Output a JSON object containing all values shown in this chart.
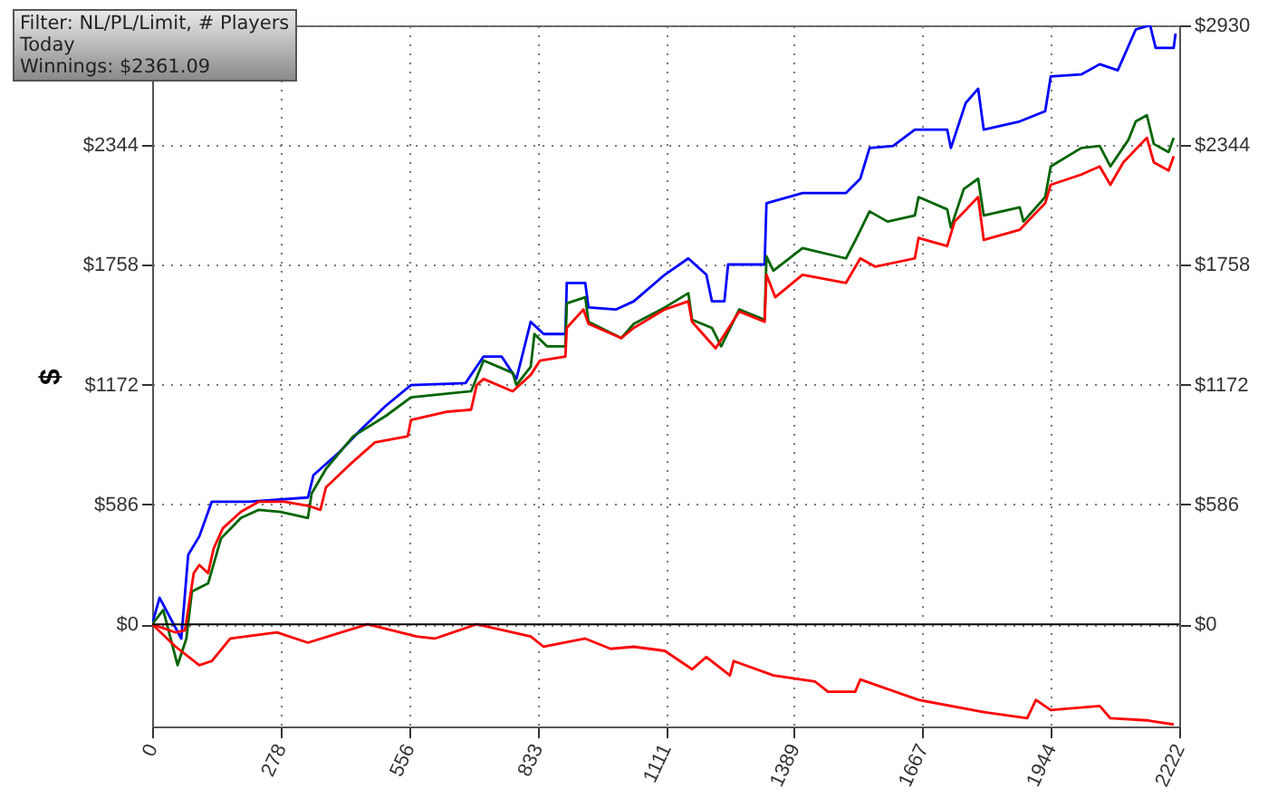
{
  "chart_data": {
    "type": "line",
    "ylabel": "$",
    "annotations": [
      "Filter: NL/PL/Limit, # Players",
      "Today",
      "Winnings: $2361.09"
    ],
    "xlim": [
      0,
      2222
    ],
    "xticks": [
      0,
      278,
      556,
      833,
      1111,
      1389,
      1667,
      1944,
      2222
    ],
    "ylim": [
      -500,
      2930
    ],
    "yticks": [
      {
        "value": 0,
        "label": "$0"
      },
      {
        "value": 586,
        "label": "$586"
      },
      {
        "value": 1172,
        "label": "$1172"
      },
      {
        "value": 1758,
        "label": "$1758"
      },
      {
        "value": 2344,
        "label": "$2344"
      },
      {
        "value": 2930,
        "label": null
      }
    ],
    "y2lim": [
      -500,
      2930
    ],
    "y2ticks": [
      {
        "value": 0,
        "label": "$0"
      },
      {
        "value": 586,
        "label": "$586"
      },
      {
        "value": 1172,
        "label": "$1172"
      },
      {
        "value": 1758,
        "label": "$1758"
      },
      {
        "value": 2344,
        "label": "$2344"
      },
      {
        "value": 2930,
        "label": "$2930"
      }
    ],
    "grid": true,
    "ref_lines": [
      {
        "axis": "y",
        "value": 0,
        "color": "#000000"
      }
    ],
    "series": [
      {
        "color": "#0000ff",
        "x": [
          0,
          16,
          63,
          78,
          102,
          129,
          208,
          337,
          349,
          404,
          455,
          506,
          560,
          678,
          717,
          756,
          788,
          819,
          847,
          894,
          897,
          937,
          944,
          1003,
          1042,
          1109,
          1160,
          1199,
          1211,
          1238,
          1246,
          1325,
          1329,
          1407,
          1501,
          1532,
          1552,
          1603,
          1650,
          1720,
          1728,
          1760,
          1787,
          1799,
          1877,
          1932,
          1944,
          2010,
          2050,
          2089,
          2128,
          2159,
          2171,
          2210,
          2214
        ],
        "values": [
          0,
          130,
          -70,
          340,
          430,
          600,
          600,
          620,
          730,
          840,
          960,
          1070,
          1170,
          1180,
          1310,
          1310,
          1200,
          1480,
          1420,
          1420,
          1670,
          1670,
          1550,
          1540,
          1580,
          1710,
          1790,
          1710,
          1580,
          1580,
          1760,
          1760,
          2060,
          2110,
          2110,
          2180,
          2330,
          2340,
          2420,
          2420,
          2330,
          2550,
          2620,
          2420,
          2460,
          2510,
          2680,
          2690,
          2740,
          2710,
          2910,
          2930,
          2820,
          2820,
          2890
        ]
      },
      {
        "color": "#006400",
        "x": [
          0,
          24,
          55,
          74,
          86,
          121,
          149,
          192,
          231,
          278,
          337,
          345,
          376,
          435,
          506,
          560,
          690,
          717,
          780,
          788,
          819,
          827,
          854,
          894,
          897,
          937,
          944,
          1015,
          1042,
          1109,
          1160,
          1168,
          1211,
          1231,
          1270,
          1325,
          1329,
          1344,
          1407,
          1501,
          1524,
          1552,
          1591,
          1650,
          1658,
          1720,
          1728,
          1756,
          1787,
          1799,
          1877,
          1885,
          1932,
          1944,
          2010,
          2050,
          2073,
          2112,
          2128,
          2152,
          2167,
          2199,
          2210
        ],
        "values": [
          0,
          70,
          -200,
          -70,
          160,
          200,
          420,
          520,
          560,
          550,
          520,
          640,
          760,
          920,
          1020,
          1110,
          1140,
          1290,
          1230,
          1170,
          1260,
          1420,
          1360,
          1360,
          1570,
          1600,
          1480,
          1400,
          1470,
          1550,
          1620,
          1490,
          1450,
          1360,
          1540,
          1490,
          1800,
          1730,
          1840,
          1790,
          1890,
          2020,
          1970,
          2000,
          2090,
          2030,
          1940,
          2130,
          2180,
          2000,
          2040,
          1970,
          2090,
          2240,
          2330,
          2340,
          2240,
          2370,
          2460,
          2490,
          2350,
          2310,
          2380
        ]
      },
      {
        "color": "#ff0000",
        "x": [
          0,
          51,
          71,
          90,
          102,
          121,
          133,
          153,
          192,
          231,
          286,
          337,
          364,
          376,
          427,
          482,
          553,
          560,
          639,
          690,
          702,
          717,
          780,
          819,
          839,
          894,
          897,
          933,
          944,
          1015,
          1042,
          1109,
          1160,
          1168,
          1219,
          1270,
          1325,
          1329,
          1348,
          1407,
          1501,
          1532,
          1564,
          1650,
          1658,
          1720,
          1736,
          1787,
          1799,
          1877,
          1932,
          1944,
          2010,
          2050,
          2073,
          2101,
          2152,
          2167,
          2199,
          2210
        ],
        "values": [
          0,
          -40,
          -30,
          250,
          290,
          250,
          370,
          470,
          550,
          600,
          600,
          580,
          560,
          670,
          780,
          890,
          920,
          1000,
          1040,
          1050,
          1170,
          1200,
          1140,
          1220,
          1290,
          1310,
          1450,
          1540,
          1470,
          1400,
          1450,
          1540,
          1580,
          1480,
          1350,
          1530,
          1480,
          1710,
          1600,
          1710,
          1670,
          1790,
          1750,
          1790,
          1890,
          1850,
          1970,
          2090,
          1880,
          1930,
          2060,
          2150,
          2200,
          2240,
          2150,
          2260,
          2380,
          2260,
          2220,
          2290
        ]
      },
      {
        "color": "#ff0000",
        "x": [
          0,
          51,
          102,
          129,
          169,
          270,
          337,
          466,
          572,
          611,
          702,
          819,
          847,
          937,
          992,
          1042,
          1109,
          1168,
          1199,
          1250,
          1258,
          1344,
          1434,
          1462,
          1521,
          1532,
          1658,
          1799,
          1893,
          1912,
          1944,
          2050,
          2073,
          2152,
          2210
        ],
        "values": [
          0,
          -110,
          -200,
          -180,
          -70,
          -40,
          -90,
          0,
          -60,
          -70,
          0,
          -60,
          -110,
          -70,
          -120,
          -110,
          -130,
          -220,
          -160,
          -250,
          -180,
          -250,
          -280,
          -330,
          -330,
          -270,
          -370,
          -430,
          -460,
          -370,
          -420,
          -400,
          -460,
          -470,
          -490
        ]
      }
    ]
  }
}
